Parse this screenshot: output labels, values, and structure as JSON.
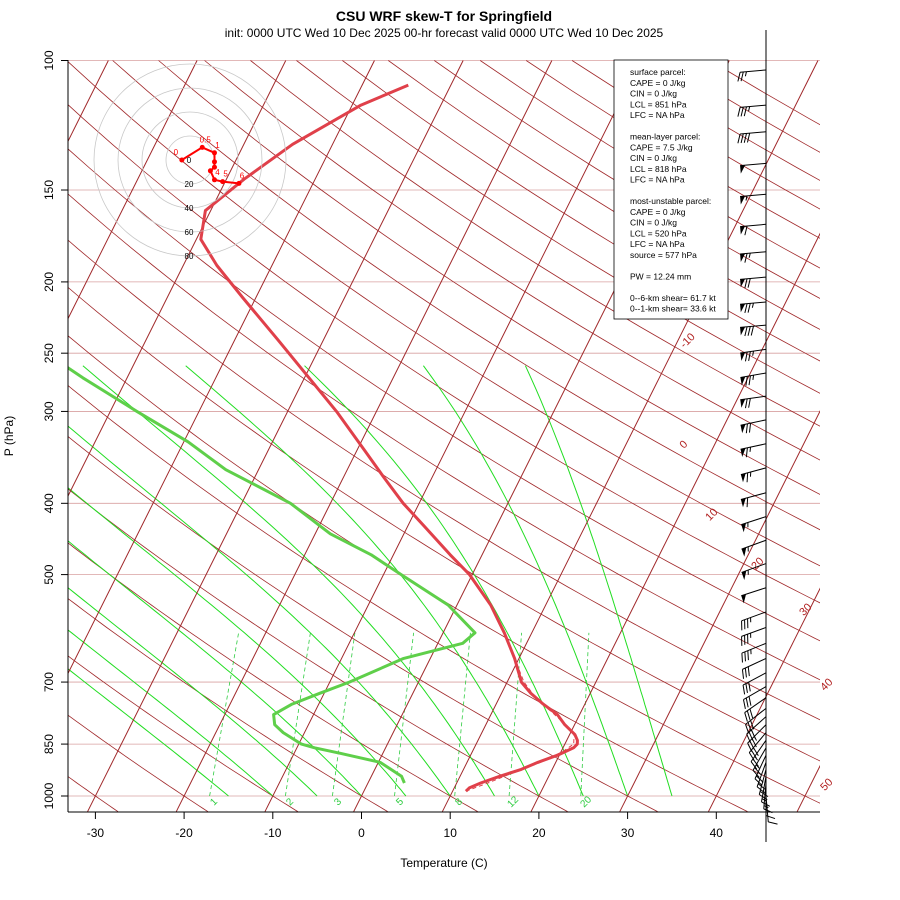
{
  "chart_data": {
    "type": "skew-t",
    "title": "CSU WRF skew-T for Springfield",
    "subtitle": "init: 0000 UTC Wed 10 Dec 2025     00-hr forecast valid 0000 UTC Wed 10 Dec 2025",
    "xlabel": "Temperature (C)",
    "ylabel": "P (hPa)",
    "xlim": [
      -33,
      51
    ],
    "ylim": [
      1000,
      100
    ],
    "x_ticks": [
      "-30",
      "-20",
      "-10",
      "0",
      "10",
      "20",
      "30",
      "40"
    ],
    "y_ticks": [
      "100",
      "150",
      "200",
      "250",
      "300",
      "400",
      "500",
      "700",
      "850",
      "1000"
    ],
    "isotherm_labels": [
      "-10",
      "0",
      "10",
      "20",
      "30",
      "40",
      "50"
    ],
    "mixing_ratio_labels": [
      "1",
      "2",
      "3",
      "5",
      "8",
      "12",
      "20"
    ],
    "colors": {
      "temperature": "#e0404a",
      "dewpoint": "#5fcf4a",
      "parcel": "#e0404a",
      "isotherm": "#a0282a",
      "isobar": "#d8a0a0",
      "dry_adiabat": "#a0282a",
      "moist_adiabat": "#22dd22",
      "mixing_ratio": "#2ecc40",
      "hodograph": "#ff0000"
    },
    "temperature": {
      "p": [
        985,
        975,
        960,
        940,
        920,
        900,
        880,
        860,
        850,
        840,
        825,
        800,
        775,
        750,
        725,
        700,
        650,
        600,
        550,
        500,
        470,
        430,
        400,
        370,
        340,
        300,
        270,
        240,
        210,
        190,
        175,
        160,
        145,
        130,
        115,
        108
      ],
      "t": [
        11.5,
        11.7,
        12.7,
        14.5,
        16.5,
        18.0,
        19.8,
        21.2,
        21.4,
        21.2,
        20.6,
        18.9,
        17.5,
        15.3,
        13.3,
        11.6,
        9.5,
        6.9,
        3.8,
        -0.3,
        -3.6,
        -8.1,
        -11.8,
        -15.3,
        -19.0,
        -24.5,
        -29.5,
        -35.1,
        -41.5,
        -46.2,
        -49.5,
        -50.6,
        -48.0,
        -44.5,
        -39.0,
        -34.8
      ]
    },
    "dewpoint": {
      "p": [
        960,
        940,
        900,
        875,
        860,
        850,
        820,
        800,
        775,
        750,
        725,
        700,
        650,
        620,
        600,
        550,
        500,
        470,
        440,
        400,
        360,
        330,
        300,
        270,
        250,
        220,
        200,
        180,
        160,
        140,
        120,
        106
      ],
      "td": [
        4.1,
        3.4,
        0.2,
        -4.8,
        -8.0,
        -9.7,
        -12.4,
        -13.8,
        -14.5,
        -13.0,
        -10.5,
        -7.8,
        -3.0,
        2.8,
        3.6,
        -1.0,
        -8.0,
        -12.5,
        -18.3,
        -24.5,
        -33.7,
        -39.5,
        -47.0,
        -55.0,
        -60.5,
        -70.2,
        -76.5,
        -84.5,
        -94.5,
        -106.0,
        -117.0,
        -123.0
      ]
    },
    "parcel": {
      "p": [
        985,
        960,
        930,
        900,
        870,
        850,
        820,
        800,
        770,
        740,
        700,
        650,
        600,
        550
      ],
      "t": [
        11.5,
        13.5,
        15.8,
        18.3,
        20.2,
        21.0,
        20.4,
        19.0,
        16.8,
        14.4,
        11.9,
        9.5,
        6.9,
        3.8
      ]
    },
    "wind_barbs": {
      "p": [
        103,
        115,
        125,
        138,
        152,
        167,
        182,
        197,
        213,
        229,
        247,
        266,
        286,
        308,
        332,
        358,
        387,
        417,
        449,
        483,
        521,
        562,
        590,
        620,
        650,
        680,
        710,
        735,
        760,
        780,
        800,
        820,
        840,
        860,
        880,
        900,
        920,
        940,
        960,
        980,
        1000
      ],
      "speed_kt": [
        25,
        35,
        40,
        50,
        55,
        60,
        65,
        70,
        75,
        80,
        75,
        75,
        70,
        70,
        65,
        65,
        60,
        55,
        55,
        55,
        50,
        35,
        35,
        35,
        30,
        30,
        30,
        30,
        30,
        30,
        35,
        30,
        25,
        25,
        20,
        20,
        20,
        15,
        15,
        10,
        10
      ],
      "dir_deg": [
        265,
        265,
        265,
        265,
        265,
        265,
        265,
        265,
        265,
        265,
        262,
        260,
        262,
        258,
        258,
        255,
        255,
        252,
        250,
        250,
        252,
        250,
        250,
        248,
        245,
        242,
        240,
        235,
        232,
        228,
        225,
        220,
        215,
        210,
        205,
        200,
        195,
        190,
        185,
        180,
        175
      ]
    },
    "hodograph": {
      "ring_labels": [
        "20",
        "40",
        "60",
        "80"
      ],
      "point_labels": [
        "0",
        "0.5",
        "1",
        "4",
        "5",
        "6"
      ],
      "u_kt": [
        -2,
        3,
        6,
        6,
        6,
        5,
        6,
        8,
        12
      ],
      "v_kt": [
        0,
        7,
        4,
        -1,
        -4,
        -6,
        -11,
        -12,
        -13
      ]
    },
    "legend": {
      "lines": [
        "surface parcel:",
        "CAPE = 0 J/kg",
        "CIN = 0 J/kg",
        "LCL = 851 hPa",
        "LFC = NA hPa",
        "",
        "mean-layer parcel:",
        "CAPE = 7.5 J/kg",
        "CIN = 0 J/kg",
        "LCL = 818 hPa",
        "LFC = NA hPa",
        "",
        "most-unstable parcel:",
        "CAPE = 0 J/kg",
        "CIN = 0 J/kg",
        "LCL = 520 hPa",
        "LFC = NA hPa",
        "source = 577 hPa",
        "",
        "PW =  12.24 mm",
        "",
        "0--6-km shear= 61.7 kt",
        "0--1-km shear= 33.6 kt"
      ]
    }
  }
}
